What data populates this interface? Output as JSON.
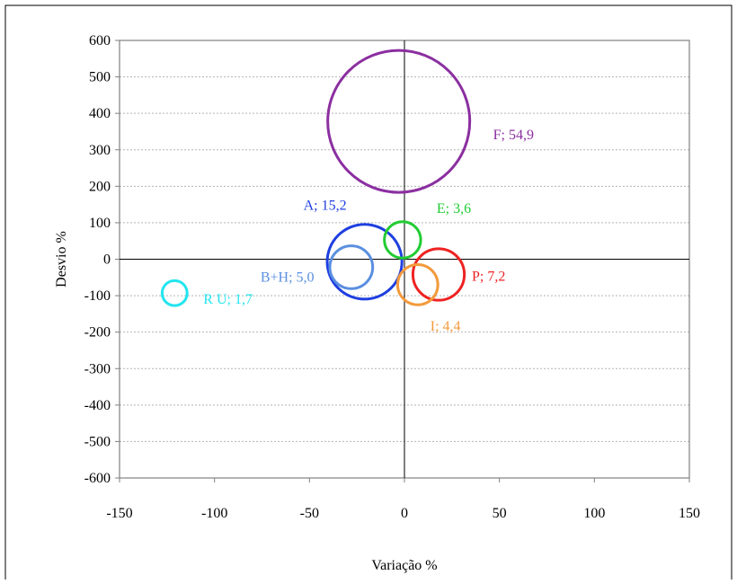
{
  "chart_data": {
    "type": "bubble",
    "xlabel": "Variação %",
    "ylabel": "Desvio %",
    "xlim": [
      -150,
      150
    ],
    "ylim": [
      -600,
      600
    ],
    "xticks": [
      -150,
      -100,
      -50,
      0,
      50,
      100,
      150
    ],
    "yticks": [
      600,
      500,
      400,
      300,
      200,
      100,
      0,
      -100,
      -200,
      -300,
      -400,
      -500,
      -600
    ],
    "grid": "horizontal-dashed",
    "series": [
      {
        "name": "F",
        "label": "F; 54,9",
        "x": -3,
        "y": 378,
        "size": 54.9,
        "color": "#8B2FA0"
      },
      {
        "name": "A",
        "label": "A; 15,2",
        "x": -21,
        "y": -7,
        "size": 15.2,
        "color": "#1F3FE0"
      },
      {
        "name": "B+H",
        "label": "B+H; 5,0",
        "x": -28,
        "y": -22,
        "size": 5.0,
        "color": "#5B8FE0"
      },
      {
        "name": "E",
        "label": "E; 3,6",
        "x": -1,
        "y": 53,
        "size": 3.6,
        "color": "#22CC33"
      },
      {
        "name": "P",
        "label": "P; 7,2",
        "x": 18,
        "y": -42,
        "size": 7.2,
        "color": "#EE2222"
      },
      {
        "name": "I",
        "label": "I; 4,4",
        "x": 7,
        "y": -70,
        "size": 4.4,
        "color": "#F39A3C"
      },
      {
        "name": "R U",
        "label": "R U; 1,7",
        "x": -121,
        "y": -93,
        "size": 1.7,
        "color": "#22E5F0"
      }
    ]
  }
}
